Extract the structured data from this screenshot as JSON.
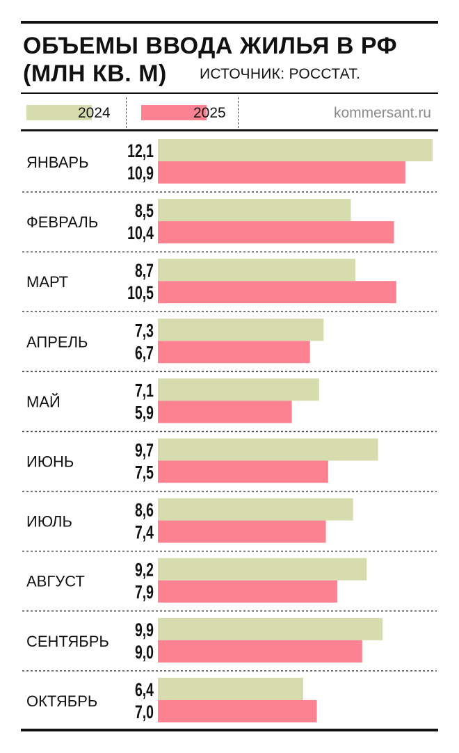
{
  "header": {
    "title_line1": "ОБЪЕМЫ ВВОДА ЖИЛЬЯ В РФ",
    "title_line2": "(МЛН КВ. М)",
    "source": "ИСТОЧНИК: РОССТАТ."
  },
  "legend": {
    "series_2024": "2024",
    "series_2025": "2025",
    "site": "kommersant.ru"
  },
  "colors": {
    "series_2024": "#d6dcae",
    "series_2025": "#fc8291",
    "text": "#111111"
  },
  "chart_data": {
    "type": "bar",
    "orientation": "horizontal",
    "title": "ОБЪЕМЫ ВВОДА ЖИЛЬЯ В РФ (МЛН КВ. М)",
    "xlabel": "",
    "ylabel": "",
    "xlim": [
      0,
      12.1
    ],
    "grid": false,
    "legend_position": "top",
    "categories": [
      "ЯНВАРЬ",
      "ФЕВРАЛЬ",
      "МАРТ",
      "АПРЕЛЬ",
      "МАЙ",
      "ИЮНЬ",
      "ИЮЛЬ",
      "АВГУСТ",
      "СЕНТЯБРЬ",
      "ОКТЯБРЬ"
    ],
    "series": [
      {
        "name": "2024",
        "values": [
          12.1,
          8.5,
          8.7,
          7.3,
          7.1,
          9.7,
          8.6,
          9.2,
          9.9,
          6.4
        ],
        "labels": [
          "12,1",
          "8,5",
          "8,7",
          "7,3",
          "7,1",
          "9,7",
          "8,6",
          "9,2",
          "9,9",
          "6,4"
        ]
      },
      {
        "name": "2025",
        "values": [
          10.9,
          10.4,
          10.5,
          6.7,
          5.9,
          7.5,
          7.4,
          7.9,
          9.0,
          7.0
        ],
        "labels": [
          "10,9",
          "10,4",
          "10,5",
          "6,7",
          "5,9",
          "7,5",
          "7,4",
          "7,9",
          "9,0",
          "7,0"
        ]
      }
    ]
  }
}
